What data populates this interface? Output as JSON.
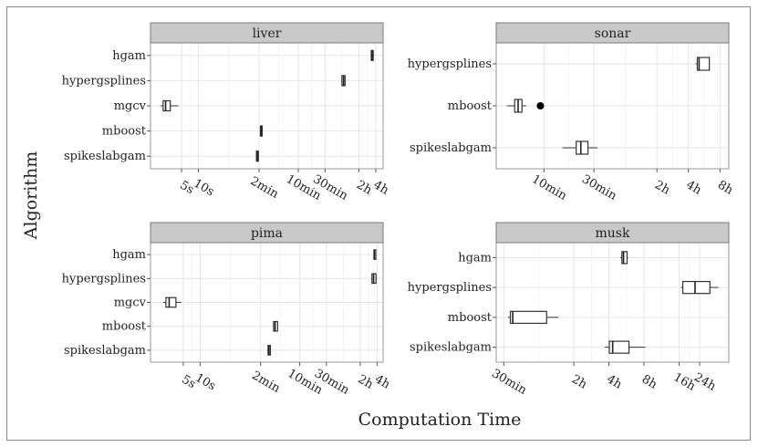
{
  "chart_data": {
    "type": "boxplot",
    "xlabel": "Computation Time",
    "ylabel": "Algorithm",
    "x_scale": "log",
    "x_unit": "seconds",
    "grid": true,
    "panels": [
      {
        "title": "liver",
        "categories": [
          "hgam",
          "hypergsplines",
          "mgcv",
          "mboost",
          "spikeslabgam"
        ],
        "xlim": [
          1.4,
          19500
        ],
        "ticks": [
          {
            "label": "5s",
            "value": 5
          },
          {
            "label": "10s",
            "value": 10
          },
          {
            "label": "2min",
            "value": 120
          },
          {
            "label": "10min",
            "value": 600
          },
          {
            "label": "30min",
            "value": 1800
          },
          {
            "label": "2h",
            "value": 7200
          },
          {
            "label": "4h",
            "value": 14400
          }
        ],
        "boxes": [
          {
            "name": "hgam",
            "whisker_low": 11700,
            "q1": 12000,
            "median": 12400,
            "q3": 13000,
            "whisker_high": 13500,
            "outliers": []
          },
          {
            "name": "hypergsplines",
            "whisker_low": 3550,
            "q1": 3600,
            "median": 3850,
            "q3": 4100,
            "whisker_high": 4150,
            "outliers": []
          },
          {
            "name": "mgcv",
            "whisker_low": 2.1,
            "q1": 2.35,
            "median": 2.6,
            "q3": 3.15,
            "whisker_high": 4.4,
            "outliers": []
          },
          {
            "name": "mboost",
            "whisker_low": 124,
            "q1": 127,
            "median": 131,
            "q3": 135,
            "whisker_high": 138,
            "outliers": []
          },
          {
            "name": "spikeslabgam",
            "whisker_low": 106,
            "q1": 108,
            "median": 112,
            "q3": 117,
            "whisker_high": 119,
            "outliers": []
          }
        ]
      },
      {
        "title": "sonar",
        "categories": [
          "hypergsplines",
          "mboost",
          "spikeslabgam"
        ],
        "xlim": [
          210,
          35000
        ],
        "ticks": [
          {
            "label": "10min",
            "value": 600
          },
          {
            "label": "30min",
            "value": 1800
          },
          {
            "label": "2h",
            "value": 7200
          },
          {
            "label": "4h",
            "value": 14400
          },
          {
            "label": "8h",
            "value": 28800
          }
        ],
        "boxes": [
          {
            "name": "hypergsplines",
            "whisker_low": 16900,
            "q1": 17500,
            "median": 18200,
            "q3": 22800,
            "whisker_high": 23000,
            "outliers": []
          },
          {
            "name": "mboost",
            "whisker_low": 265,
            "q1": 315,
            "median": 340,
            "q3": 370,
            "whisker_high": 405,
            "outliers": [
              555
            ]
          },
          {
            "name": "spikeslabgam",
            "whisker_low": 900,
            "q1": 1220,
            "median": 1350,
            "q3": 1580,
            "whisker_high": 1950,
            "outliers": []
          }
        ]
      },
      {
        "title": "pima",
        "categories": [
          "hgam",
          "hypergsplines",
          "mgcv",
          "mboost",
          "spikeslabgam"
        ],
        "xlim": [
          1.3,
          18500
        ],
        "ticks": [
          {
            "label": "5s",
            "value": 5
          },
          {
            "label": "10s",
            "value": 10
          },
          {
            "label": "2min",
            "value": 120
          },
          {
            "label": "10min",
            "value": 600
          },
          {
            "label": "30min",
            "value": 1800
          },
          {
            "label": "2h",
            "value": 7200
          },
          {
            "label": "4h",
            "value": 14400
          }
        ],
        "boxes": [
          {
            "name": "hgam",
            "whisker_low": 12600,
            "q1": 12700,
            "median": 12900,
            "q3": 13100,
            "whisker_high": 13300,
            "outliers": []
          },
          {
            "name": "hypergsplines",
            "whisker_low": 11300,
            "q1": 11700,
            "median": 12500,
            "q3": 13800,
            "whisker_high": 14200,
            "outliers": []
          },
          {
            "name": "mgcv",
            "whisker_low": 2.2,
            "q1": 2.45,
            "median": 2.8,
            "q3": 3.7,
            "whisker_high": 4.6,
            "outliers": []
          },
          {
            "name": "mboost",
            "whisker_low": 200,
            "q1": 205,
            "median": 218,
            "q3": 242,
            "whisker_high": 246,
            "outliers": []
          },
          {
            "name": "spikeslabgam",
            "whisker_low": 160,
            "q1": 163,
            "median": 170,
            "q3": 180,
            "whisker_high": 184,
            "outliers": []
          }
        ]
      },
      {
        "title": "musk",
        "categories": [
          "hgam",
          "hypergsplines",
          "mboost",
          "spikeslabgam"
        ],
        "xlim": [
          1550,
          154000
        ],
        "ticks": [
          {
            "label": "30min",
            "value": 1800
          },
          {
            "label": "2h",
            "value": 7200
          },
          {
            "label": "4h",
            "value": 14400
          },
          {
            "label": "8h",
            "value": 28800
          },
          {
            "label": "16h",
            "value": 57600
          },
          {
            "label": "24h",
            "value": 86400
          }
        ],
        "boxes": [
          {
            "name": "hgam",
            "whisker_low": 18000,
            "q1": 18600,
            "median": 19200,
            "q3": 20600,
            "whisker_high": 21000,
            "outliers": []
          },
          {
            "name": "hypergsplines",
            "whisker_low": 60000,
            "q1": 62000,
            "median": 79000,
            "q3": 106000,
            "whisker_high": 125000,
            "outliers": []
          },
          {
            "name": "mboost",
            "whisker_low": 1950,
            "q1": 2050,
            "median": 2150,
            "q3": 4200,
            "whisker_high": 5300,
            "outliers": []
          },
          {
            "name": "spikeslabgam",
            "whisker_low": 13300,
            "q1": 14500,
            "median": 15500,
            "q3": 21400,
            "whisker_high": 29500,
            "outliers": []
          }
        ]
      }
    ]
  }
}
